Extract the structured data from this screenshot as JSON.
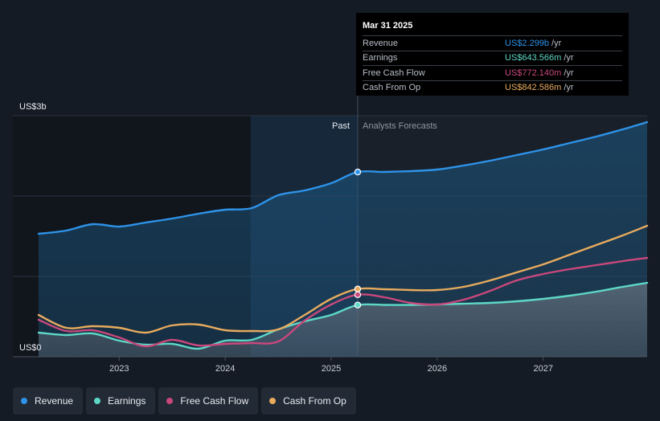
{
  "chart_data": {
    "type": "line",
    "y_top_label": "US$3b",
    "y_bottom_label": "US$0",
    "ylim": [
      0,
      3.0
    ],
    "xlim": [
      2022.24,
      2027.98
    ],
    "x_ticks": [
      "2023",
      "2024",
      "2025",
      "2026",
      "2027"
    ],
    "x_tick_values": [
      2023,
      2024,
      2025,
      2026,
      2027
    ],
    "past_label": "Past",
    "forecast_label": "Analysts Forecasts",
    "past_boundary": 2025.25,
    "highlight_start": 2024.24,
    "grid": true,
    "legend": "bottom",
    "series": [
      {
        "name": "Revenue",
        "color": "#2e93e8",
        "x": [
          2022.24,
          2022.5,
          2022.75,
          2023.0,
          2023.25,
          2023.5,
          2023.75,
          2024.0,
          2024.25,
          2024.5,
          2024.75,
          2025.0,
          2025.25,
          2025.5,
          2025.75,
          2026.0,
          2026.25,
          2026.5,
          2026.75,
          2027.0,
          2027.25,
          2027.5,
          2027.75,
          2027.98
        ],
        "y": [
          1.53,
          1.57,
          1.65,
          1.62,
          1.67,
          1.72,
          1.78,
          1.83,
          1.85,
          2.01,
          2.07,
          2.16,
          2.299,
          2.3,
          2.31,
          2.33,
          2.38,
          2.44,
          2.51,
          2.58,
          2.66,
          2.74,
          2.83,
          2.92
        ]
      },
      {
        "name": "Earnings",
        "color": "#5ed7c6",
        "x": [
          2022.24,
          2022.5,
          2022.75,
          2023.0,
          2023.25,
          2023.5,
          2023.75,
          2024.0,
          2024.25,
          2024.5,
          2024.75,
          2025.0,
          2025.25,
          2025.5,
          2025.75,
          2026.0,
          2026.25,
          2026.5,
          2026.75,
          2027.0,
          2027.25,
          2027.5,
          2027.75,
          2027.98
        ],
        "y": [
          0.3,
          0.27,
          0.29,
          0.2,
          0.15,
          0.16,
          0.1,
          0.2,
          0.21,
          0.34,
          0.44,
          0.52,
          0.6436,
          0.645,
          0.645,
          0.65,
          0.66,
          0.67,
          0.69,
          0.72,
          0.76,
          0.81,
          0.87,
          0.92
        ]
      },
      {
        "name": "Free Cash Flow",
        "color": "#c9487c",
        "x": [
          2022.24,
          2022.5,
          2022.75,
          2023.0,
          2023.25,
          2023.5,
          2023.75,
          2024.0,
          2024.25,
          2024.5,
          2024.75,
          2025.0,
          2025.25,
          2025.5,
          2025.75,
          2026.0,
          2026.25,
          2026.5,
          2026.75,
          2027.0,
          2027.25,
          2027.5,
          2027.75,
          2027.98
        ],
        "y": [
          0.46,
          0.32,
          0.33,
          0.24,
          0.13,
          0.21,
          0.14,
          0.16,
          0.17,
          0.19,
          0.45,
          0.65,
          0.7721,
          0.74,
          0.67,
          0.65,
          0.71,
          0.82,
          0.95,
          1.03,
          1.09,
          1.14,
          1.19,
          1.23
        ]
      },
      {
        "name": "Cash From Op",
        "color": "#e8ab5e",
        "x": [
          2022.24,
          2022.5,
          2022.75,
          2023.0,
          2023.25,
          2023.5,
          2023.75,
          2024.0,
          2024.25,
          2024.5,
          2024.75,
          2025.0,
          2025.25,
          2025.5,
          2025.75,
          2026.0,
          2026.25,
          2026.5,
          2026.75,
          2027.0,
          2027.25,
          2027.5,
          2027.75,
          2027.98
        ],
        "y": [
          0.52,
          0.36,
          0.38,
          0.36,
          0.3,
          0.39,
          0.4,
          0.33,
          0.32,
          0.34,
          0.52,
          0.72,
          0.8426,
          0.84,
          0.83,
          0.83,
          0.87,
          0.95,
          1.05,
          1.15,
          1.27,
          1.39,
          1.51,
          1.63
        ]
      }
    ]
  },
  "tooltip": {
    "date": "Mar 31 2025",
    "unit": "/yr",
    "rows": [
      {
        "label": "Revenue",
        "value": "US$2.299b",
        "color": "#2e93e8"
      },
      {
        "label": "Earnings",
        "value": "US$643.566m",
        "color": "#5ed7c6"
      },
      {
        "label": "Free Cash Flow",
        "value": "US$772.140m",
        "color": "#c9487c"
      },
      {
        "label": "Cash From Op",
        "value": "US$842.586m",
        "color": "#e8ab5e"
      }
    ]
  },
  "legend": [
    {
      "label": "Revenue",
      "color": "#2e93e8"
    },
    {
      "label": "Earnings",
      "color": "#5ed7c6"
    },
    {
      "label": "Free Cash Flow",
      "color": "#c9487c"
    },
    {
      "label": "Cash From Op",
      "color": "#e8ab5e"
    }
  ]
}
